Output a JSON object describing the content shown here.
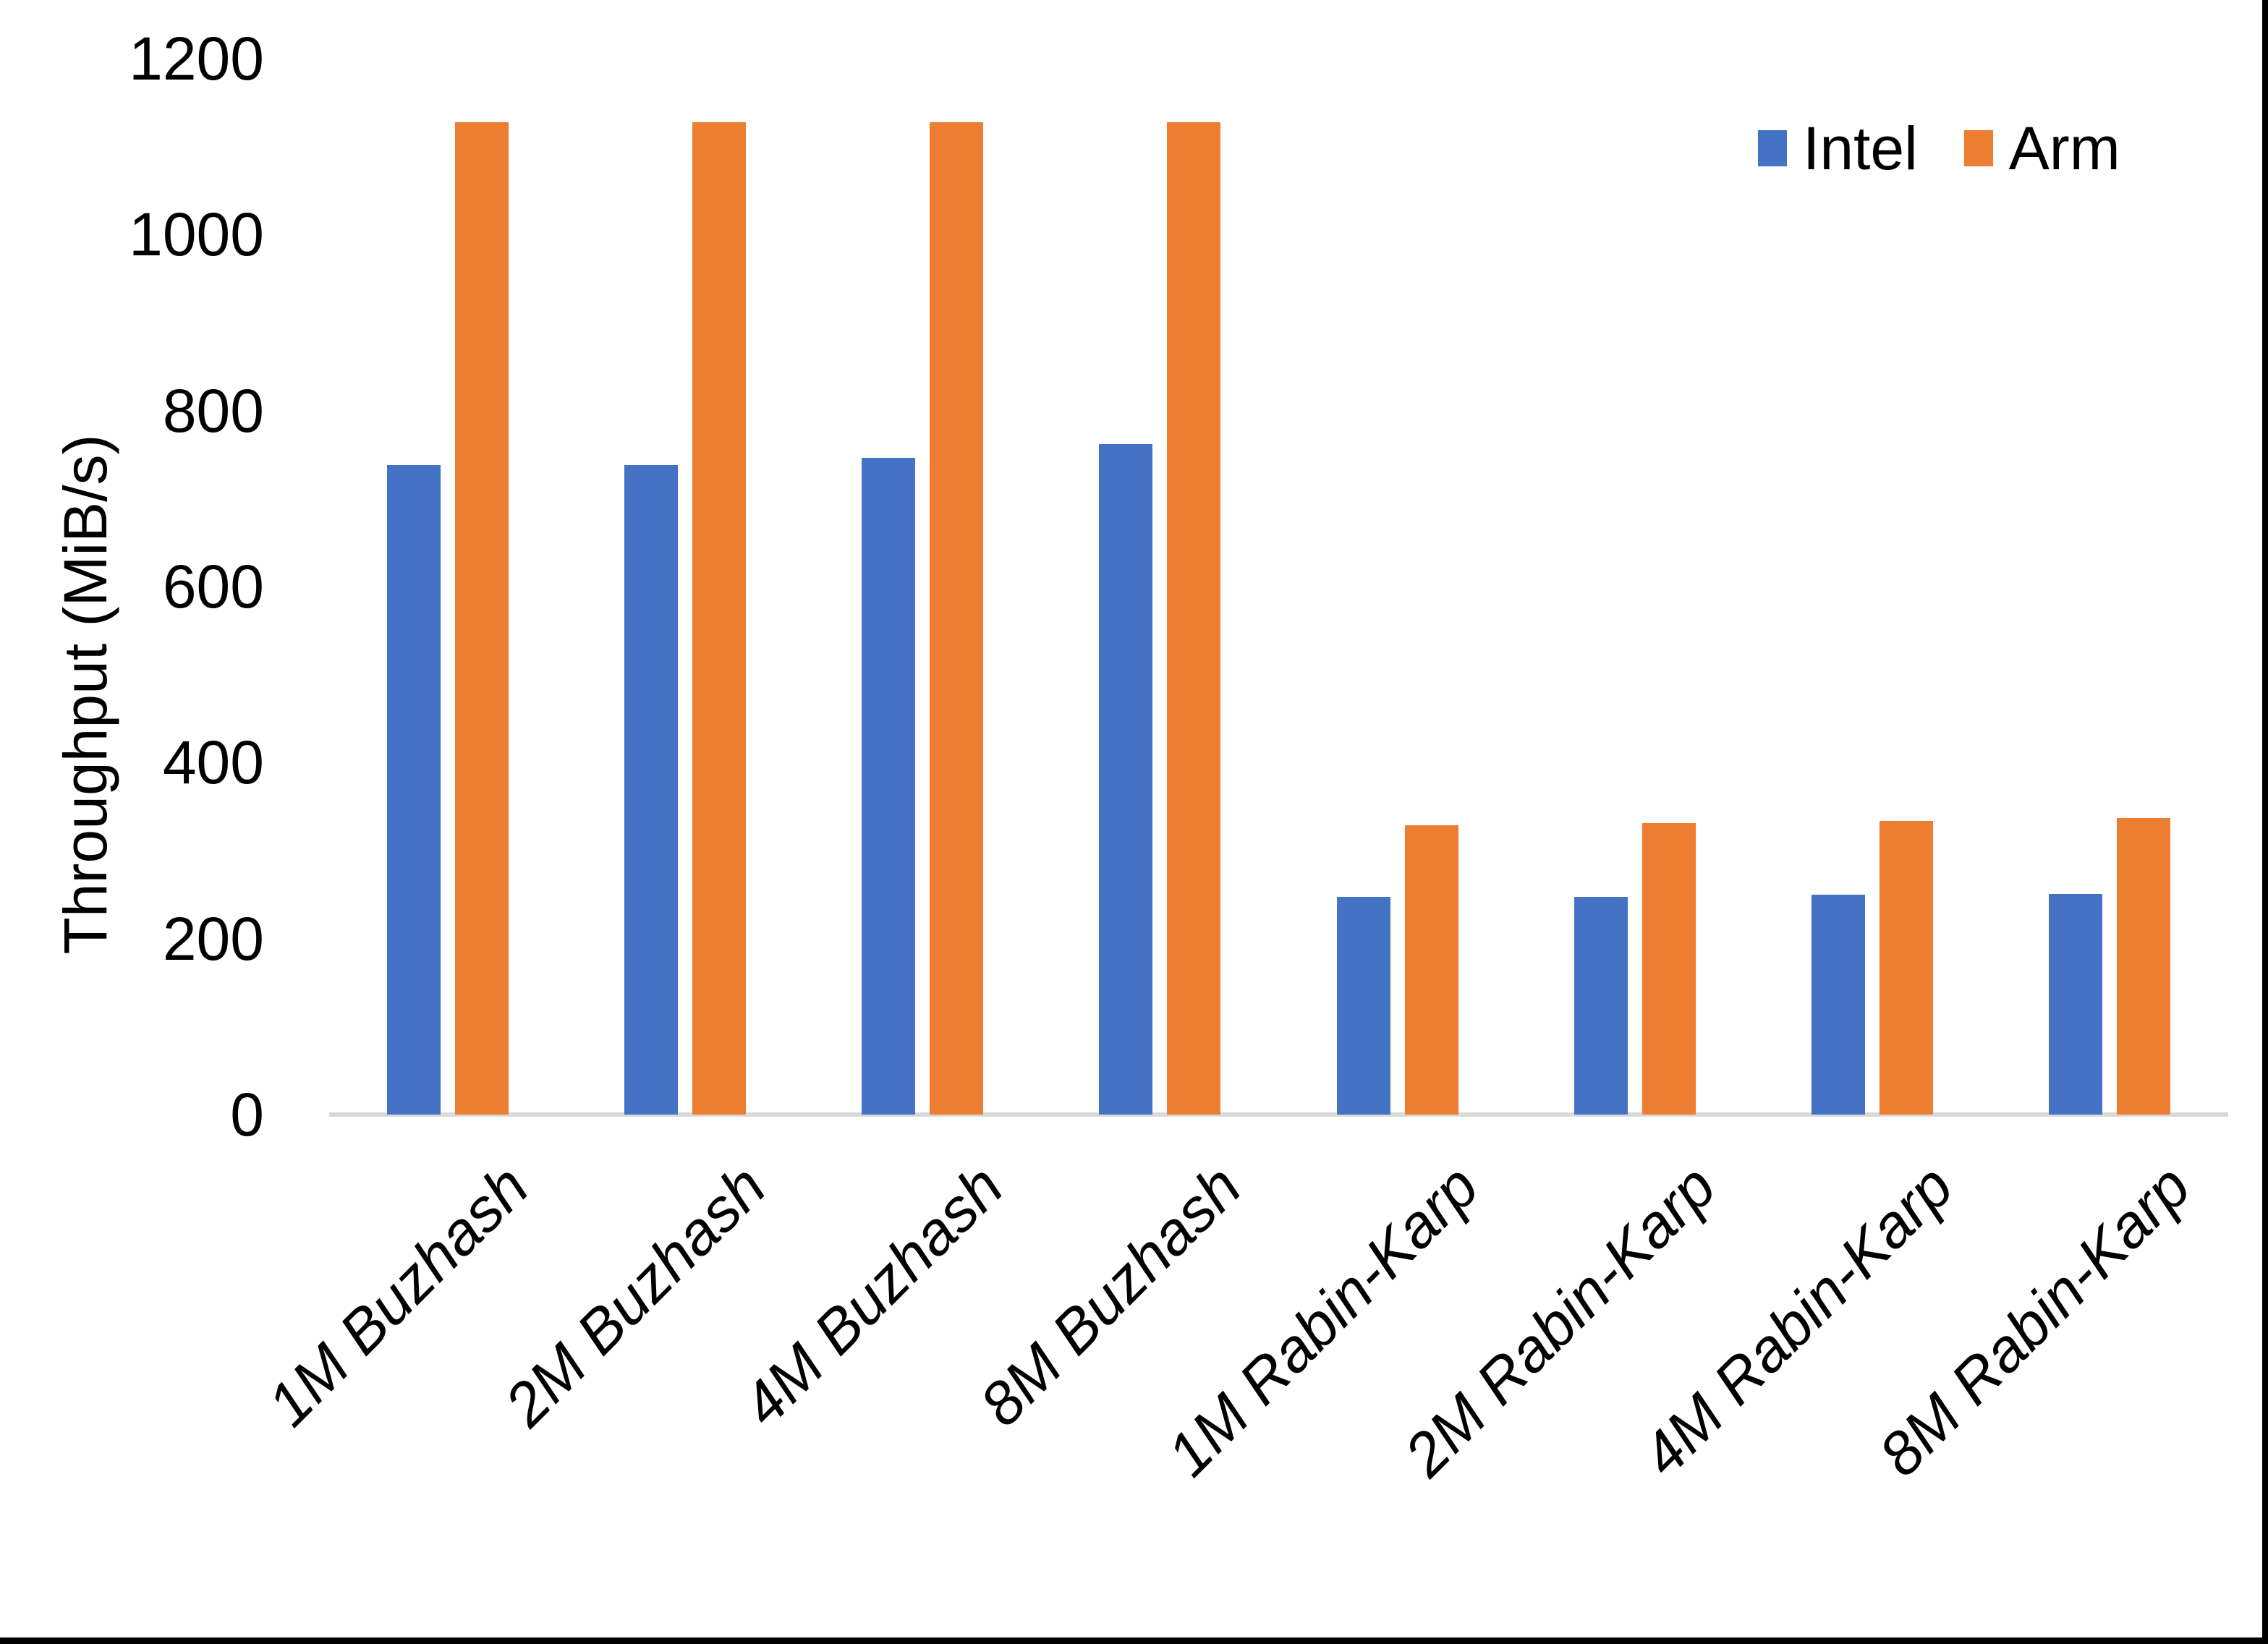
{
  "chart_data": {
    "type": "bar",
    "title": "",
    "xlabel": "",
    "ylabel": "Throughput (MiB/s)",
    "ylim": [
      0,
      1200
    ],
    "yticks": [
      0,
      200,
      400,
      600,
      800,
      1000,
      1200
    ],
    "grid": false,
    "legend_position": "top-right",
    "categories": [
      "1M Buzhash",
      "2M Buzhash",
      "4M Buzhash",
      "8M Buzhash",
      "1M Rabin-Karp",
      "2M Rabin-Karp",
      "4M Rabin-Karp",
      "8M Rabin-Karp"
    ],
    "series": [
      {
        "name": "Intel",
        "color": "#4472C4",
        "values": [
          738,
          738,
          746,
          762,
          247,
          247,
          250,
          251
        ]
      },
      {
        "name": "Arm",
        "color": "#ED7D31",
        "values": [
          1128,
          1128,
          1128,
          1128,
          329,
          331,
          334,
          337
        ]
      }
    ],
    "axis_line_color": "#D9D9D9",
    "category_label_style": "italic, rotated 45deg",
    "background_color": "#FFFFFF"
  },
  "legend": {
    "items": [
      {
        "label": "Intel",
        "color": "#4472C4"
      },
      {
        "label": "Arm",
        "color": "#ED7D31"
      }
    ]
  }
}
